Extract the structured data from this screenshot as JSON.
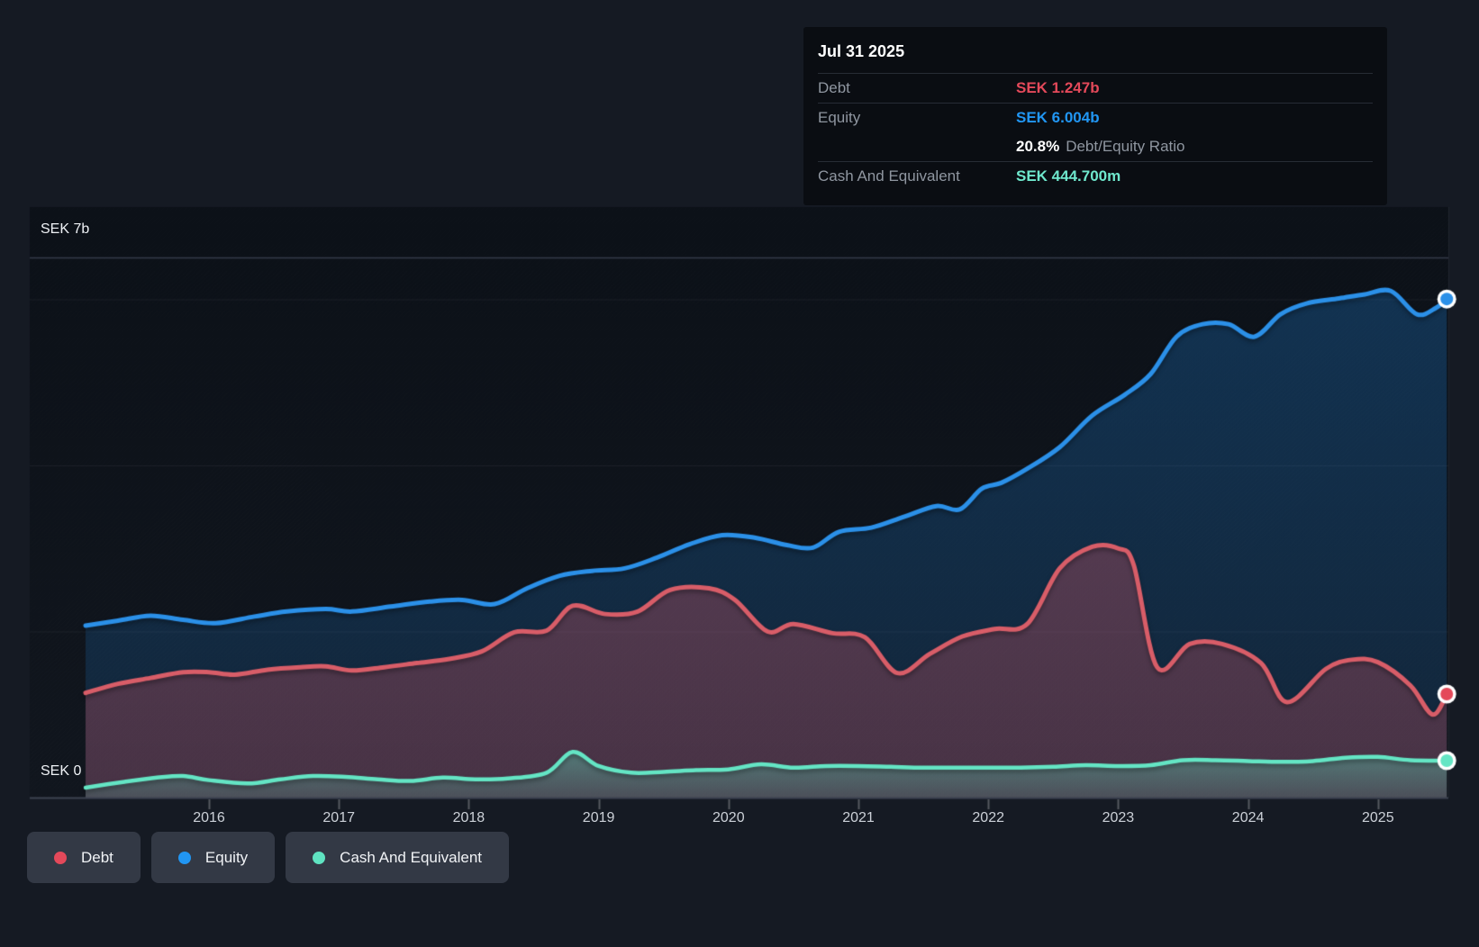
{
  "tooltip": {
    "date": "Jul 31 2025",
    "rows": [
      {
        "label": "Debt",
        "value": "SEK 1.247b"
      },
      {
        "label": "Equity",
        "value": "SEK 6.004b"
      },
      {
        "label": "Cash And Equivalent",
        "value": "SEK 444.700m"
      }
    ],
    "ratio_value": "20.8%",
    "ratio_label": "Debt/Equity Ratio"
  },
  "y_axis": {
    "top_label": "SEK 7b",
    "bottom_label": "SEK 0"
  },
  "x_axis": {
    "labels": [
      "2016",
      "2017",
      "2018",
      "2019",
      "2020",
      "2021",
      "2022",
      "2023",
      "2024",
      "2025"
    ]
  },
  "legend": [
    {
      "label": "Debt",
      "color": "#e4495a"
    },
    {
      "label": "Equity",
      "color": "#2196f3"
    },
    {
      "label": "Cash And Equivalent",
      "color": "#5fe3c1"
    }
  ],
  "colors": {
    "page_bg": "#151a23",
    "plot_bg": "#0e1219",
    "grid_top": "#343b49",
    "grid_inner": "rgba(255,255,255,0.055)",
    "axis": "#3c4350",
    "tick": "rgba(255,255,255,0.28)",
    "debt_line": "#d85d68",
    "equity_line": "#2b90e8",
    "cash_line": "#64e5c4",
    "dot_ring": "#ffffff"
  },
  "chart_data": {
    "type": "area",
    "unit": "SEK billions",
    "title": "",
    "xlabel": "",
    "ylabel": "SEK",
    "x_range": [
      2015.05,
      2025.53
    ],
    "ylim": [
      0,
      6.5
    ],
    "y_top_label_value": 7,
    "y_gridline_values": [
      6,
      4,
      2
    ],
    "x_tick_years": [
      2016,
      2017,
      2018,
      2019,
      2020,
      2021,
      2022,
      2023,
      2024,
      2025
    ],
    "grid": true,
    "legend_position": "bottom-left",
    "series": [
      {
        "name": "Equity",
        "end_value_label": "SEK 6.004b",
        "points": [
          [
            2015.05,
            2.07
          ],
          [
            2015.3,
            2.13
          ],
          [
            2015.55,
            2.19
          ],
          [
            2015.8,
            2.14
          ],
          [
            2016.05,
            2.1
          ],
          [
            2016.35,
            2.18
          ],
          [
            2016.6,
            2.24
          ],
          [
            2016.9,
            2.27
          ],
          [
            2017.1,
            2.24
          ],
          [
            2017.4,
            2.3
          ],
          [
            2017.7,
            2.36
          ],
          [
            2017.95,
            2.38
          ],
          [
            2018.2,
            2.33
          ],
          [
            2018.45,
            2.52
          ],
          [
            2018.7,
            2.67
          ],
          [
            2018.95,
            2.73
          ],
          [
            2019.2,
            2.76
          ],
          [
            2019.45,
            2.89
          ],
          [
            2019.7,
            3.05
          ],
          [
            2019.95,
            3.16
          ],
          [
            2020.2,
            3.13
          ],
          [
            2020.45,
            3.04
          ],
          [
            2020.65,
            3.01
          ],
          [
            2020.85,
            3.2
          ],
          [
            2021.1,
            3.25
          ],
          [
            2021.35,
            3.38
          ],
          [
            2021.6,
            3.51
          ],
          [
            2021.78,
            3.47
          ],
          [
            2021.95,
            3.72
          ],
          [
            2022.1,
            3.79
          ],
          [
            2022.3,
            3.96
          ],
          [
            2022.55,
            4.22
          ],
          [
            2022.8,
            4.6
          ],
          [
            2023.05,
            4.85
          ],
          [
            2023.25,
            5.1
          ],
          [
            2023.45,
            5.55
          ],
          [
            2023.65,
            5.7
          ],
          [
            2023.85,
            5.7
          ],
          [
            2024.05,
            5.55
          ],
          [
            2024.25,
            5.82
          ],
          [
            2024.45,
            5.95
          ],
          [
            2024.7,
            6.01
          ],
          [
            2024.9,
            6.06
          ],
          [
            2025.1,
            6.1
          ],
          [
            2025.3,
            5.82
          ],
          [
            2025.45,
            5.9
          ],
          [
            2025.53,
            6.004
          ]
        ]
      },
      {
        "name": "Debt",
        "end_value_label": "SEK 1.247b",
        "points": [
          [
            2015.05,
            1.26
          ],
          [
            2015.3,
            1.37
          ],
          [
            2015.55,
            1.44
          ],
          [
            2015.8,
            1.51
          ],
          [
            2016.0,
            1.51
          ],
          [
            2016.2,
            1.48
          ],
          [
            2016.45,
            1.54
          ],
          [
            2016.7,
            1.57
          ],
          [
            2016.9,
            1.58
          ],
          [
            2017.1,
            1.53
          ],
          [
            2017.35,
            1.57
          ],
          [
            2017.6,
            1.62
          ],
          [
            2017.85,
            1.67
          ],
          [
            2018.1,
            1.76
          ],
          [
            2018.35,
            1.99
          ],
          [
            2018.6,
            2.01
          ],
          [
            2018.8,
            2.31
          ],
          [
            2019.05,
            2.21
          ],
          [
            2019.3,
            2.24
          ],
          [
            2019.55,
            2.5
          ],
          [
            2019.85,
            2.52
          ],
          [
            2020.05,
            2.38
          ],
          [
            2020.3,
            2.0
          ],
          [
            2020.5,
            2.09
          ],
          [
            2020.8,
            1.98
          ],
          [
            2021.05,
            1.93
          ],
          [
            2021.3,
            1.5
          ],
          [
            2021.55,
            1.73
          ],
          [
            2021.8,
            1.94
          ],
          [
            2022.05,
            2.03
          ],
          [
            2022.3,
            2.09
          ],
          [
            2022.55,
            2.76
          ],
          [
            2022.8,
            3.02
          ],
          [
            2023.0,
            3.0
          ],
          [
            2023.12,
            2.8
          ],
          [
            2023.3,
            1.57
          ],
          [
            2023.55,
            1.85
          ],
          [
            2023.8,
            1.85
          ],
          [
            2024.1,
            1.62
          ],
          [
            2024.3,
            1.15
          ],
          [
            2024.6,
            1.55
          ],
          [
            2024.8,
            1.66
          ],
          [
            2025.0,
            1.63
          ],
          [
            2025.25,
            1.35
          ],
          [
            2025.42,
            1.0
          ],
          [
            2025.53,
            1.247
          ]
        ]
      },
      {
        "name": "Cash And Equivalent",
        "end_value_label": "SEK 444.700m",
        "points": [
          [
            2015.05,
            0.12
          ],
          [
            2015.35,
            0.19
          ],
          [
            2015.6,
            0.24
          ],
          [
            2015.8,
            0.26
          ],
          [
            2016.0,
            0.21
          ],
          [
            2016.3,
            0.17
          ],
          [
            2016.55,
            0.22
          ],
          [
            2016.8,
            0.26
          ],
          [
            2017.05,
            0.25
          ],
          [
            2017.3,
            0.22
          ],
          [
            2017.55,
            0.2
          ],
          [
            2017.8,
            0.24
          ],
          [
            2018.05,
            0.22
          ],
          [
            2018.3,
            0.23
          ],
          [
            2018.6,
            0.3
          ],
          [
            2018.8,
            0.55
          ],
          [
            2019.0,
            0.38
          ],
          [
            2019.25,
            0.3
          ],
          [
            2019.5,
            0.31
          ],
          [
            2019.75,
            0.33
          ],
          [
            2020.0,
            0.34
          ],
          [
            2020.25,
            0.4
          ],
          [
            2020.5,
            0.36
          ],
          [
            2020.75,
            0.38
          ],
          [
            2021.0,
            0.38
          ],
          [
            2021.25,
            0.37
          ],
          [
            2021.5,
            0.36
          ],
          [
            2021.75,
            0.36
          ],
          [
            2022.0,
            0.36
          ],
          [
            2022.25,
            0.36
          ],
          [
            2022.5,
            0.37
          ],
          [
            2022.75,
            0.39
          ],
          [
            2023.0,
            0.38
          ],
          [
            2023.25,
            0.39
          ],
          [
            2023.5,
            0.45
          ],
          [
            2023.75,
            0.45
          ],
          [
            2024.0,
            0.44
          ],
          [
            2024.25,
            0.43
          ],
          [
            2024.5,
            0.44
          ],
          [
            2024.75,
            0.48
          ],
          [
            2025.0,
            0.49
          ],
          [
            2025.25,
            0.45
          ],
          [
            2025.53,
            0.4447
          ]
        ]
      }
    ]
  }
}
